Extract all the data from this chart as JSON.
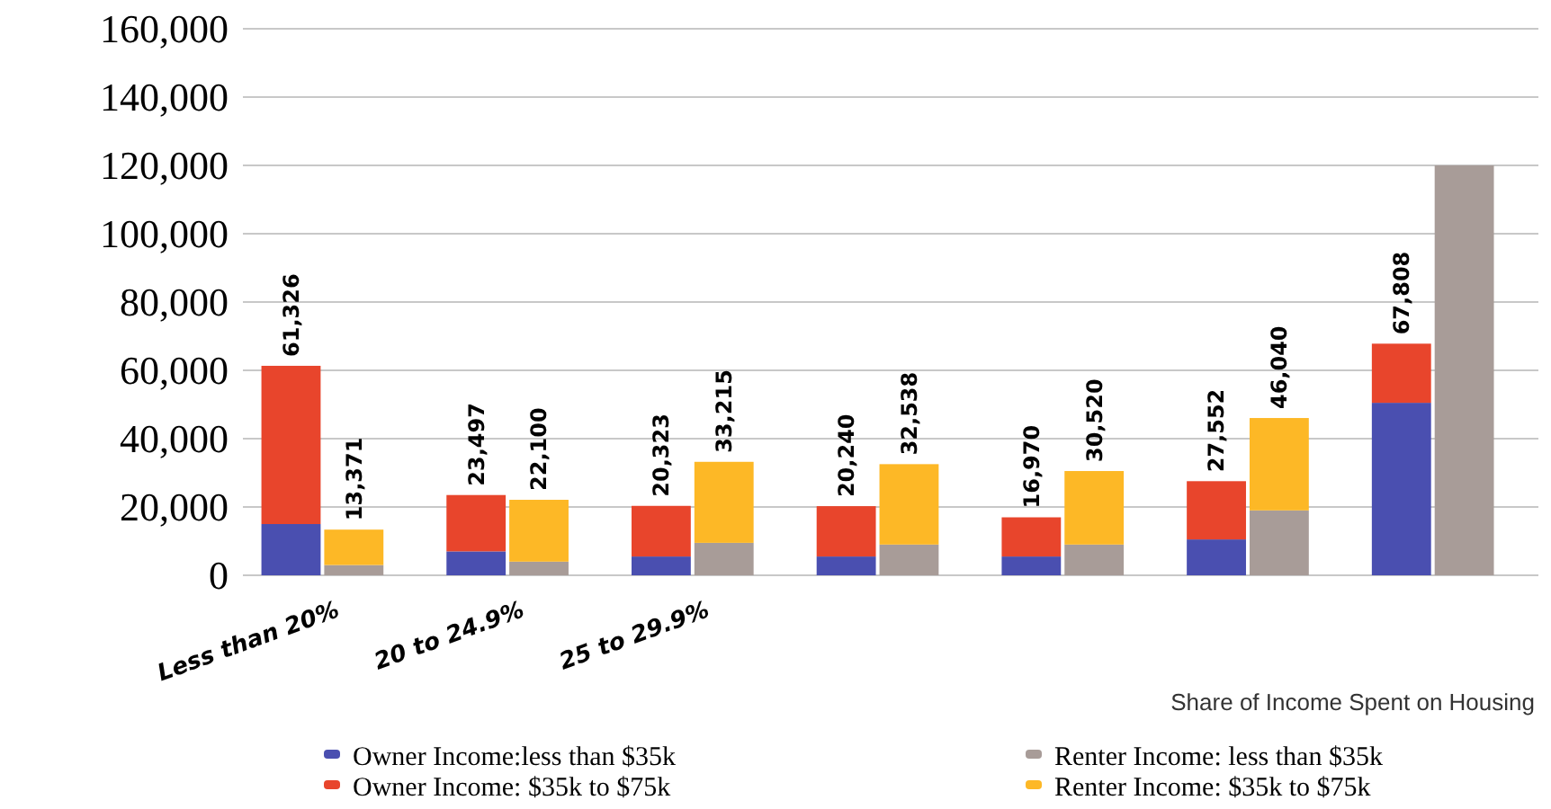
{
  "chart_data": {
    "type": "bar",
    "stacked": true,
    "xlabel": "Share of Income Spent on Housing",
    "categories": [
      "Less than 20%",
      null,
      "20 to 24.9%",
      null,
      "25 to 29.9%",
      null,
      null,
      null,
      null,
      null,
      null,
      null,
      null,
      null
    ],
    "series": [
      {
        "name": "Owner Income:less than $35k",
        "color": "#4a4fb0",
        "values": [
          15000,
          null,
          7000,
          null,
          5500,
          null,
          5500,
          null,
          5500,
          null,
          10500,
          null,
          50500,
          null
        ]
      },
      {
        "name": "Owner Income: $35k to $75k",
        "color": "#e8452c",
        "values": [
          46326,
          null,
          16497,
          null,
          14823,
          null,
          14740,
          null,
          11470,
          null,
          17052,
          null,
          17308,
          null
        ]
      },
      {
        "name": "Renter Income: less than $35k",
        "color": "#a89c98",
        "values": [
          null,
          3000,
          null,
          4000,
          null,
          9500,
          null,
          9000,
          null,
          9000,
          null,
          19000,
          null,
          120000
        ]
      },
      {
        "name": "Renter Income: $35k to $75k",
        "color": "#fdb826",
        "values": [
          null,
          10371,
          null,
          18100,
          null,
          23715,
          null,
          23538,
          null,
          21520,
          null,
          27040,
          null,
          null
        ]
      }
    ],
    "totals": [
      "61,326",
      "13,371",
      "23,497",
      "22,100",
      "20,323",
      "33,215",
      "20,240",
      "32,538",
      "16,970",
      "30,520",
      "27,552",
      "46,040",
      "67,808",
      null
    ],
    "ylim": [
      0,
      160000
    ],
    "yticks": [
      {
        "value": 0,
        "label": "0"
      },
      {
        "value": 20000,
        "label": "20,000"
      },
      {
        "value": 40000,
        "label": "40,000"
      },
      {
        "value": 60000,
        "label": "60,000"
      },
      {
        "value": 80000,
        "label": "80,000"
      },
      {
        "value": 100000,
        "label": "100,000"
      },
      {
        "value": 120000,
        "label": "120,000"
      },
      {
        "value": 140000,
        "label": "140,000"
      },
      {
        "value": 160000,
        "label": "160,000"
      }
    ],
    "grid": "y",
    "legend": "bottom"
  }
}
